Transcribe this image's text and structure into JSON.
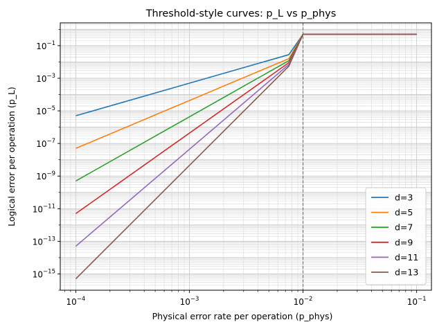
{
  "chart_data": {
    "type": "line",
    "title": "Threshold-style curves: p_L vs p_phys",
    "xlabel": "Physical error rate per operation (p_phys)",
    "ylabel": "Logical error per operation (p_L)",
    "xscale": "log",
    "yscale": "log",
    "xlim": [
      7.3e-05,
      0.135
    ],
    "ylim": [
      1e-16,
      2.5
    ],
    "grid": "both (major and minor)",
    "threshold": 0.01,
    "legend_position": "lower-right",
    "x_ticks": [
      {
        "base": "10",
        "exp": "−4",
        "value": 0.0001
      },
      {
        "base": "10",
        "exp": "−3",
        "value": 0.001
      },
      {
        "base": "10",
        "exp": "−2",
        "value": 0.01
      },
      {
        "base": "10",
        "exp": "−1",
        "value": 0.1
      }
    ],
    "y_ticks": [
      {
        "base": "10",
        "exp": "−15",
        "value": 1e-15
      },
      {
        "base": "10",
        "exp": "−13",
        "value": 1e-13
      },
      {
        "base": "10",
        "exp": "−11",
        "value": 1e-11
      },
      {
        "base": "10",
        "exp": "−9",
        "value": 1e-09
      },
      {
        "base": "10",
        "exp": "−7",
        "value": 1e-07
      },
      {
        "base": "10",
        "exp": "−5",
        "value": 1e-05
      },
      {
        "base": "10",
        "exp": "−3",
        "value": 0.001
      },
      {
        "base": "10",
        "exp": "−1",
        "value": 0.1
      }
    ],
    "x": [
      0.0001,
      0.0075,
      0.01,
      0.1
    ],
    "series": [
      {
        "name": "d=3",
        "color": "#1f77b4",
        "values": [
          5e-06,
          0.028,
          0.5,
          0.5
        ]
      },
      {
        "name": "d=5",
        "color": "#ff7f0e",
        "values": [
          5e-08,
          0.016,
          0.5,
          0.5
        ]
      },
      {
        "name": "d=7",
        "color": "#2ca02c",
        "values": [
          5e-10,
          0.012,
          0.5,
          0.5
        ]
      },
      {
        "name": "d=9",
        "color": "#d62728",
        "values": [
          5e-12,
          0.009,
          0.5,
          0.5
        ]
      },
      {
        "name": "d=11",
        "color": "#9467bd",
        "values": [
          5e-14,
          0.007,
          0.5,
          0.5
        ]
      },
      {
        "name": "d=13",
        "color": "#8c564b",
        "values": [
          5e-16,
          0.0055,
          0.5,
          0.5
        ]
      }
    ]
  }
}
